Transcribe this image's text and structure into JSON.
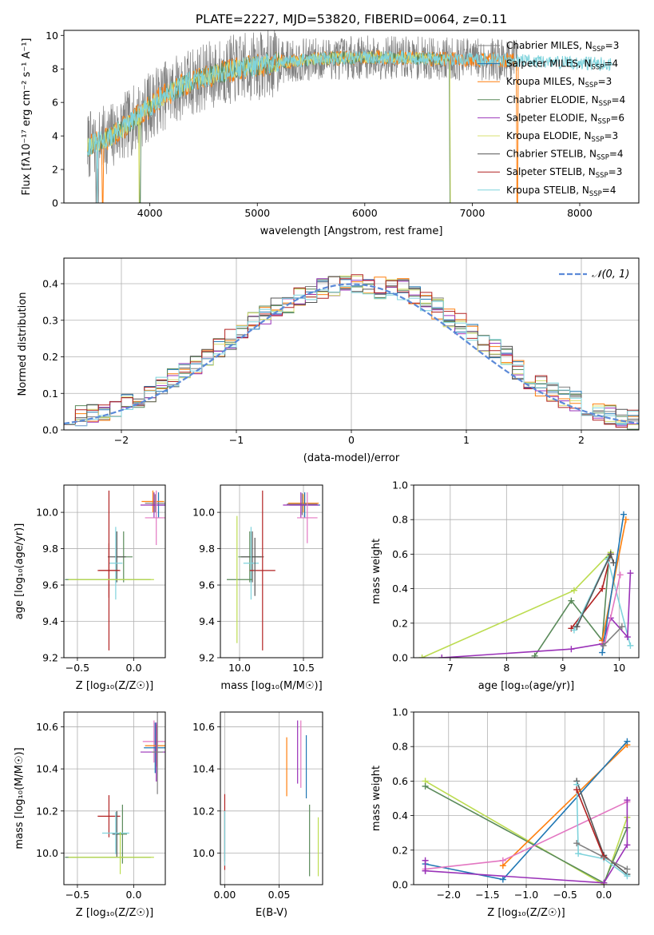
{
  "figure_title": "PLATE=2227, MJD=53820, FIBERID=0064, z=0.11",
  "colors": {
    "chabrier_miles": "#808080",
    "salpeter_miles": "#1f77b4",
    "kroupa_miles": "#ff7f0e",
    "chabrier_elodie": "#5a8a5a",
    "salpeter_elodie": "#9a32b8",
    "kroupa_elodie": "#d8e070",
    "chabrier_stelib": "#555555",
    "salpeter_stelib": "#b22222",
    "kroupa_stelib": "#7fd3dc",
    "normal_curve": "#5b8ad8",
    "pink": "#e377c2",
    "lime": "#bcdc50"
  },
  "chart_data": [
    {
      "id": "spectrum",
      "type": "line",
      "title": "PLATE=2227, MJD=53820, FIBERID=0064, z=0.11",
      "xlabel": "wavelength [Angstrom, rest frame]",
      "ylabel": "Flux [fλ10⁻¹⁷ erg cm⁻² s⁻¹ A⁻¹]",
      "xlim": [
        3200,
        8550
      ],
      "ylim": [
        0,
        10.3
      ],
      "xticks": [
        "4000",
        "5000",
        "6000",
        "7000",
        "8000"
      ],
      "yticks": [
        "0",
        "2",
        "4",
        "6",
        "8",
        "10"
      ],
      "legend_position": "upper right",
      "continuum": {
        "x": [
          3420,
          3600,
          3800,
          3950,
          4100,
          4300,
          4500,
          4800,
          5200,
          5600,
          6000,
          6400,
          6800,
          7200,
          7600,
          8000,
          8300
        ],
        "y": [
          3.4,
          3.8,
          4.7,
          5.5,
          6.3,
          7.0,
          7.5,
          8.0,
          8.4,
          8.6,
          8.7,
          8.65,
          8.6,
          8.55,
          8.45,
          8.35,
          8.3
        ]
      },
      "legend": [
        {
          "label": "Chabrier MILES, N",
          "sub": "SSP",
          "suffix": "=3",
          "color_key": "chabrier_miles"
        },
        {
          "label": "Salpeter MILES, N",
          "sub": "SSP",
          "suffix": "=4",
          "color_key": "salpeter_miles"
        },
        {
          "label": "Kroupa MILES, N",
          "sub": "SSP",
          "suffix": "=3",
          "color_key": "kroupa_miles"
        },
        {
          "label": "Chabrier ELODIE, N",
          "sub": "SSP",
          "suffix": "=4",
          "color_key": "chabrier_elodie"
        },
        {
          "label": "Salpeter ELODIE, N",
          "sub": "SSP",
          "suffix": "=6",
          "color_key": "salpeter_elodie"
        },
        {
          "label": "Kroupa ELODIE, N",
          "sub": "SSP",
          "suffix": "=3",
          "color_key": "kroupa_elodie"
        },
        {
          "label": "Chabrier STELIB, N",
          "sub": "SSP",
          "suffix": "=4",
          "color_key": "chabrier_stelib"
        },
        {
          "label": "Salpeter STELIB, N",
          "sub": "SSP",
          "suffix": "=3",
          "color_key": "salpeter_stelib"
        },
        {
          "label": "Kroupa STELIB, N",
          "sub": "SSP",
          "suffix": "=4",
          "color_key": "kroupa_stelib"
        }
      ]
    },
    {
      "id": "residuals",
      "type": "line",
      "xlabel": "(data-model)/error",
      "ylabel": "Normed distribution",
      "xlim": [
        -2.5,
        2.5
      ],
      "ylim": [
        0,
        0.47
      ],
      "xticks": [
        "−2",
        "−1",
        "0",
        "1",
        "2"
      ],
      "yticks": [
        "0.0",
        "0.1",
        "0.2",
        "0.3",
        "0.4"
      ],
      "grid": true,
      "legend_position": "upper right",
      "legend_label": "𝒩(0, 1)",
      "bin_width": 0.1,
      "hist_seeds": [
        11,
        23,
        37,
        41,
        53,
        67,
        79,
        83,
        97
      ]
    },
    {
      "id": "age_vs_Z",
      "type": "scatter",
      "xlabel": "Z [log₁₀(Z/Z☉)]",
      "ylabel": "age  [log₁₀(age/yr)]",
      "xlim": [
        -0.62,
        0.28
      ],
      "ylim": [
        9.2,
        10.15
      ],
      "xticks": [
        "−0.5",
        "0.0"
      ],
      "yticks": [
        "9.2",
        "9.4",
        "9.6",
        "9.8",
        "10.0"
      ],
      "grid": true,
      "points": [
        {
          "x": 0.22,
          "y": 10.04,
          "xerr": 0.07,
          "yerr": 0.07,
          "c": "salpeter_miles"
        },
        {
          "x": 0.17,
          "y": 10.06,
          "xerr": 0.1,
          "yerr": 0.06,
          "c": "kroupa_miles"
        },
        {
          "x": 0.19,
          "y": 10.05,
          "xerr": 0.09,
          "yerr": 0.05,
          "c": "chabrier_miles"
        },
        {
          "x": 0.18,
          "y": 10.04,
          "xerr": 0.12,
          "yerr": 0.07,
          "c": "salpeter_elodie"
        },
        {
          "x": 0.2,
          "y": 9.97,
          "xerr": 0.1,
          "yerr": 0.15,
          "c": "pink"
        },
        {
          "x": -0.09,
          "y": 9.755,
          "xerr": 0.08,
          "yerr": 0.14,
          "c": "chabrier_elodie"
        },
        {
          "x": -0.15,
          "y": 9.755,
          "xerr": 0.08,
          "yerr": 0.14,
          "c": "chabrier_stelib"
        },
        {
          "x": -0.16,
          "y": 9.72,
          "xerr": 0.06,
          "yerr": 0.2,
          "c": "kroupa_stelib"
        },
        {
          "x": -0.22,
          "y": 9.68,
          "xerr": 0.09,
          "yerr": 0.15,
          "c": "salpeter_stelib"
        },
        {
          "x": -0.22,
          "y": 9.68,
          "xerr": 0.1,
          "yerr": 0.44,
          "c": "salpeter_stelib"
        },
        {
          "x": -0.23,
          "y": 9.63,
          "xerr": 0.38,
          "yerr": 0.0,
          "c": "chabrier_elodie"
        },
        {
          "x": -0.2,
          "y": 9.63,
          "xerr": 0.38,
          "yerr": 0.0,
          "c": "lime"
        }
      ]
    },
    {
      "id": "age_vs_mass",
      "type": "scatter",
      "xlabel": "mass [log₁₀(M/M☉)]",
      "ylabel": "",
      "xlim": [
        9.85,
        10.65
      ],
      "ylim": [
        9.2,
        10.15
      ],
      "xticks": [
        "10.0",
        "10.5"
      ],
      "yticks": [
        "9.2",
        "9.4",
        "9.6",
        "9.8",
        "10.0"
      ],
      "grid": true,
      "points": [
        {
          "x": 10.5,
          "y": 10.05,
          "xerr": 0.12,
          "yerr": 0.05,
          "c": "kroupa_miles"
        },
        {
          "x": 10.51,
          "y": 10.04,
          "xerr": 0.12,
          "yerr": 0.07,
          "c": "salpeter_miles"
        },
        {
          "x": 10.49,
          "y": 10.045,
          "xerr": 0.12,
          "yerr": 0.06,
          "c": "chabrier_miles"
        },
        {
          "x": 10.48,
          "y": 10.04,
          "xerr": 0.14,
          "yerr": 0.07,
          "c": "salpeter_elodie"
        },
        {
          "x": 10.53,
          "y": 9.97,
          "xerr": 0.08,
          "yerr": 0.14,
          "c": "pink"
        },
        {
          "x": 10.08,
          "y": 9.755,
          "xerr": 0.09,
          "yerr": 0.14,
          "c": "chabrier_elodie"
        },
        {
          "x": 10.1,
          "y": 9.755,
          "xerr": 0.09,
          "yerr": 0.14,
          "c": "chabrier_stelib"
        },
        {
          "x": 10.09,
          "y": 9.72,
          "xerr": 0.06,
          "yerr": 0.2,
          "c": "kroupa_stelib"
        },
        {
          "x": 10.18,
          "y": 9.68,
          "xerr": 0.1,
          "yerr": 0.44,
          "c": "salpeter_stelib"
        },
        {
          "x": 10.0,
          "y": 9.63,
          "xerr": 0.1,
          "yerr": 0.0,
          "c": "chabrier_elodie"
        },
        {
          "x": 9.98,
          "y": 9.63,
          "xerr": 0.0,
          "yerr": 0.35,
          "c": "lime"
        },
        {
          "x": 10.12,
          "y": 9.7,
          "xerr": 0.0,
          "yerr": 0.16,
          "c": "chabrier_stelib"
        }
      ]
    },
    {
      "id": "weight_vs_age",
      "type": "line",
      "xlabel": "age  [log₁₀(age/yr)]",
      "ylabel": "mass weight",
      "xlim": [
        6.35,
        10.35
      ],
      "ylim": [
        0,
        1.0
      ],
      "xticks": [
        "7",
        "8",
        "9",
        "10"
      ],
      "yticks": [
        "0.0",
        "0.2",
        "0.4",
        "0.6",
        "0.8",
        "1.0"
      ],
      "grid": true,
      "series": [
        {
          "c": "lime",
          "x": [
            6.5,
            9.2,
            9.85
          ],
          "y": [
            0.0,
            0.39,
            0.61
          ]
        },
        {
          "c": "chabrier_elodie",
          "x": [
            8.5,
            9.15,
            9.7,
            9.82
          ],
          "y": [
            0.01,
            0.33,
            0.1,
            0.58
          ]
        },
        {
          "c": "salpeter_stelib",
          "x": [
            9.15,
            9.7,
            9.85
          ],
          "y": [
            0.17,
            0.4,
            0.6
          ]
        },
        {
          "c": "kroupa_stelib",
          "x": [
            9.2,
            9.8,
            10.2
          ],
          "y": [
            0.16,
            0.57,
            0.07
          ]
        },
        {
          "c": "chabrier_stelib",
          "x": [
            9.25,
            9.85,
            9.9
          ],
          "y": [
            0.18,
            0.6,
            0.55
          ]
        },
        {
          "c": "salpeter_elodie",
          "x": [
            6.85,
            9.15,
            9.7,
            9.85,
            10.15,
            10.2
          ],
          "y": [
            0.0,
            0.05,
            0.08,
            0.23,
            0.12,
            0.49
          ]
        },
        {
          "c": "kroupa_miles",
          "x": [
            9.7,
            10.12
          ],
          "y": [
            0.1,
            0.8
          ]
        },
        {
          "c": "salpeter_miles",
          "x": [
            9.7,
            10.08
          ],
          "y": [
            0.03,
            0.83
          ]
        },
        {
          "c": "pink",
          "x": [
            9.75,
            10.02
          ],
          "y": [
            0.09,
            0.48
          ]
        },
        {
          "c": "chabrier_miles",
          "x": [
            9.72,
            10.05
          ],
          "y": [
            0.07,
            0.18
          ]
        }
      ]
    },
    {
      "id": "mass_vs_Z",
      "type": "scatter",
      "xlabel": "Z [log₁₀(Z/Z☉)]",
      "ylabel": "mass [log₁₀(M/M☉)]",
      "xlim": [
        -0.62,
        0.28
      ],
      "ylim": [
        9.85,
        10.67
      ],
      "xticks": [
        "−0.5",
        "0.0"
      ],
      "yticks": [
        "10.0",
        "10.2",
        "10.4",
        "10.6"
      ],
      "grid": true,
      "points": [
        {
          "x": 0.18,
          "y": 10.53,
          "xerr": 0.1,
          "yerr": 0.1,
          "c": "pink"
        },
        {
          "x": 0.19,
          "y": 10.5,
          "xerr": 0.1,
          "yerr": 0.12,
          "c": "salpeter_miles"
        },
        {
          "x": 0.2,
          "y": 10.51,
          "xerr": 0.1,
          "yerr": 0.1,
          "c": "kroupa_miles"
        },
        {
          "x": 0.2,
          "y": 10.48,
          "xerr": 0.14,
          "yerr": 0.14,
          "c": "salpeter_elodie"
        },
        {
          "x": 0.21,
          "y": 10.48,
          "xerr": 0.05,
          "yerr": 0.2,
          "c": "chabrier_miles"
        },
        {
          "x": -0.22,
          "y": 10.175,
          "xerr": 0.1,
          "yerr": 0.1,
          "c": "salpeter_stelib"
        },
        {
          "x": -0.15,
          "y": 10.09,
          "xerr": 0.04,
          "yerr": 0.11,
          "c": "chabrier_stelib"
        },
        {
          "x": -0.1,
          "y": 10.09,
          "xerr": 0.04,
          "yerr": 0.14,
          "c": "chabrier_elodie"
        },
        {
          "x": -0.16,
          "y": 10.095,
          "xerr": 0.12,
          "yerr": 0.1,
          "c": "kroupa_stelib"
        },
        {
          "x": -0.23,
          "y": 9.98,
          "xerr": 0.38,
          "yerr": 0.0,
          "c": "chabrier_elodie"
        },
        {
          "x": -0.2,
          "y": 9.98,
          "xerr": 0.38,
          "yerr": 0.0,
          "c": "lime"
        },
        {
          "x": -0.12,
          "y": 10.0,
          "xerr": 0.0,
          "yerr": 0.1,
          "c": "lime"
        }
      ]
    },
    {
      "id": "mass_vs_ebv",
      "type": "scatter",
      "xlabel": "E(B-V)",
      "ylabel": "",
      "xlim": [
        -0.004,
        0.09
      ],
      "ylim": [
        9.85,
        10.67
      ],
      "xticks": [
        "0.00",
        "0.05"
      ],
      "yticks": [
        "10.0",
        "10.2",
        "10.4",
        "10.6"
      ],
      "grid": true,
      "points": [
        {
          "x": 0.0,
          "y": 10.1,
          "xerr": 0.0,
          "yerr": 0.18,
          "c": "salpeter_stelib"
        },
        {
          "x": 0.0,
          "y": 10.08,
          "xerr": 0.0,
          "yerr": 0.12,
          "c": "chabrier_stelib"
        },
        {
          "x": 0.0,
          "y": 10.07,
          "xerr": 0.0,
          "yerr": 0.13,
          "c": "kroupa_stelib"
        },
        {
          "x": 0.057,
          "y": 10.41,
          "xerr": 0.0,
          "yerr": 0.14,
          "c": "kroupa_miles"
        },
        {
          "x": 0.067,
          "y": 10.48,
          "xerr": 0.0,
          "yerr": 0.15,
          "c": "salpeter_elodie"
        },
        {
          "x": 0.07,
          "y": 10.47,
          "xerr": 0.0,
          "yerr": 0.16,
          "c": "pink"
        },
        {
          "x": 0.075,
          "y": 10.41,
          "xerr": 0.0,
          "yerr": 0.15,
          "c": "salpeter_miles"
        },
        {
          "x": 0.078,
          "y": 10.06,
          "xerr": 0.0,
          "yerr": 0.17,
          "c": "chabrier_elodie"
        },
        {
          "x": 0.086,
          "y": 10.03,
          "xerr": 0.0,
          "yerr": 0.14,
          "c": "lime"
        }
      ]
    },
    {
      "id": "weight_vs_Z",
      "type": "line",
      "xlabel": "Z [log₁₀(Z/Z☉)]",
      "ylabel": "mass weight",
      "xlim": [
        -2.45,
        0.45
      ],
      "ylim": [
        0,
        1.0
      ],
      "xticks": [
        "−2.0",
        "−1.5",
        "−1.0",
        "−0.5",
        "0.0"
      ],
      "yticks": [
        "0.0",
        "0.2",
        "0.4",
        "0.6",
        "0.8",
        "1.0"
      ],
      "grid": true,
      "series": [
        {
          "c": "lime",
          "x": [
            -2.3,
            0.0,
            0.3
          ],
          "y": [
            0.6,
            0.0,
            0.39
          ]
        },
        {
          "c": "chabrier_elodie",
          "x": [
            -2.3,
            0.0,
            0.3
          ],
          "y": [
            0.57,
            0.01,
            0.33
          ]
        },
        {
          "c": "kroupa_miles",
          "x": [
            -1.3,
            0.3
          ],
          "y": [
            0.11,
            0.81
          ]
        },
        {
          "c": "salpeter_miles",
          "x": [
            -2.3,
            -1.3,
            0.3
          ],
          "y": [
            0.12,
            0.03,
            0.83
          ]
        },
        {
          "c": "pink",
          "x": [
            -2.3,
            -1.3,
            0.3
          ],
          "y": [
            0.09,
            0.14,
            0.48
          ]
        },
        {
          "c": "salpeter_elodie",
          "x": [
            -2.3,
            0.0,
            0.3,
            0.3
          ],
          "y": [
            0.08,
            0.01,
            0.23,
            0.49
          ]
        },
        {
          "c": "chabrier_stelib",
          "x": [
            -0.35,
            0.0,
            0.3
          ],
          "y": [
            0.6,
            0.17,
            0.06
          ]
        },
        {
          "c": "kroupa_stelib",
          "x": [
            -0.35,
            -0.33,
            0.0,
            0.3
          ],
          "y": [
            0.58,
            0.18,
            0.15,
            0.05
          ]
        },
        {
          "c": "salpeter_stelib",
          "x": [
            -0.35,
            0.0
          ],
          "y": [
            0.55,
            0.16
          ]
        },
        {
          "c": "salpeter_elodie",
          "x": [
            -2.3,
            -2.3
          ],
          "y": [
            0.08,
            0.14
          ]
        },
        {
          "c": "chabrier_miles",
          "x": [
            -0.35,
            0.3
          ],
          "y": [
            0.24,
            0.09
          ]
        }
      ]
    }
  ]
}
